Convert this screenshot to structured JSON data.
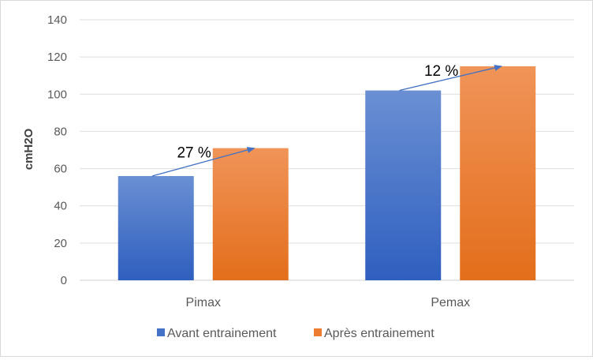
{
  "chart_data": {
    "type": "bar",
    "title": "",
    "xlabel": "",
    "ylabel": "cmH2O",
    "ylim": [
      0,
      140
    ],
    "yticks": [
      0,
      20,
      40,
      60,
      80,
      100,
      120,
      140
    ],
    "grid": true,
    "legend_position": "bottom",
    "categories": [
      "Pimax",
      "Pemax"
    ],
    "series": [
      {
        "name": "Avant entrainement",
        "values": [
          56,
          102
        ],
        "color": "#4472c4"
      },
      {
        "name": "Après entrainement",
        "values": [
          71,
          115
        ],
        "color": "#ed7d31"
      }
    ],
    "annotations": [
      {
        "text": "27 %",
        "category": "Pimax"
      },
      {
        "text": "12 %",
        "category": "Pemax"
      }
    ],
    "arrow_color": "#4472c4"
  }
}
